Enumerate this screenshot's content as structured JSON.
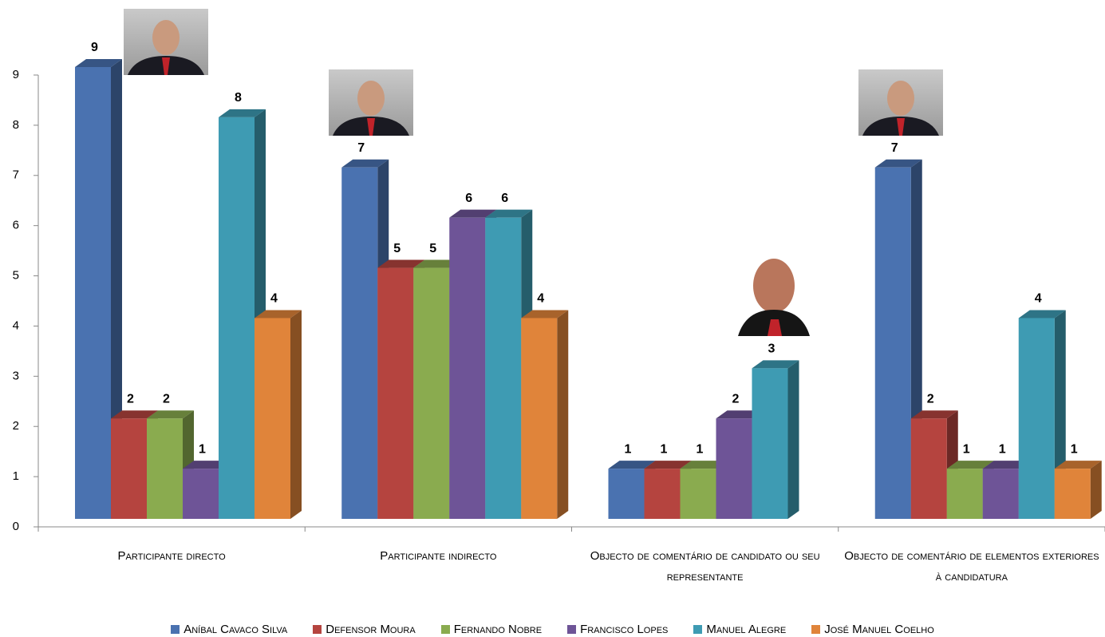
{
  "chart_data": {
    "type": "bar3d",
    "categories": [
      "Participante directo",
      "Participante indirecto",
      "Objecto de comentário de candidato ou seu representante",
      "Objecto de comentário de elementos exteriores à candidatura"
    ],
    "series": [
      {
        "name": "Aníbal Cavaco Silva",
        "color": "#4a72b0",
        "values": [
          9,
          7,
          1,
          7
        ]
      },
      {
        "name": "Defensor Moura",
        "color": "#b5443f",
        "values": [
          2,
          5,
          1,
          2
        ]
      },
      {
        "name": "Fernando Nobre",
        "color": "#8aab4f",
        "values": [
          2,
          5,
          1,
          1
        ]
      },
      {
        "name": "Francisco Lopes",
        "color": "#6e5497",
        "values": [
          1,
          6,
          2,
          1
        ]
      },
      {
        "name": "Manuel Alegre",
        "color": "#3e9bb3",
        "values": [
          8,
          6,
          3,
          4
        ]
      },
      {
        "name": "José Manuel Coelho",
        "color": "#e0843a",
        "values": [
          4,
          4,
          null,
          1
        ]
      }
    ],
    "ylim": [
      0,
      9
    ],
    "yticks": [
      0,
      1,
      2,
      3,
      4,
      5,
      6,
      7,
      8,
      9
    ]
  }
}
